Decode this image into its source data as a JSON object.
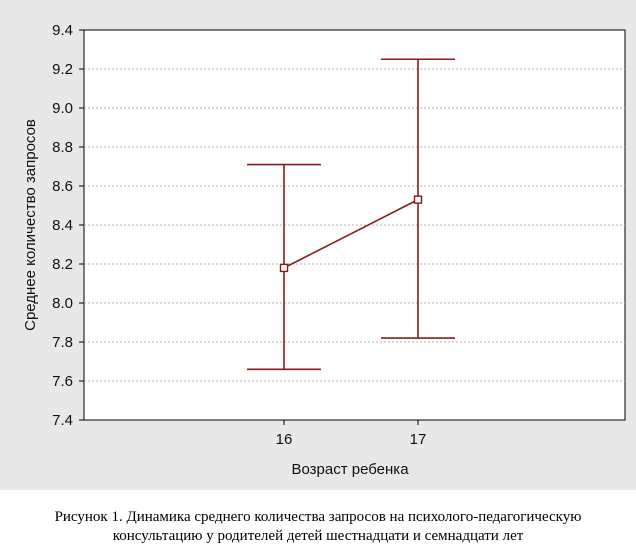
{
  "chart_data": {
    "type": "line",
    "ylabel": "Среднее количество запросов",
    "xlabel": "Возраст ребенка",
    "categories": [
      "16",
      "17"
    ],
    "series": [
      {
        "means": [
          8.18,
          8.53
        ],
        "upper": [
          8.71,
          9.25
        ],
        "lower": [
          7.66,
          7.82
        ]
      }
    ],
    "ylim": [
      7.4,
      9.4
    ],
    "yticks": [
      "9.4",
      "9.2",
      "9.0",
      "8.8",
      "8.6",
      "8.4",
      "8.2",
      "8.0",
      "7.8",
      "7.6",
      "7.4"
    ],
    "grid": true,
    "color": "#8b1a1a"
  },
  "caption": {
    "line1": "Рисунок 1. Динамика среднего количества запросов на психолого-педагогическую",
    "line2": "консультацию у родителей детей шестнадцати и семнадцати лет"
  }
}
